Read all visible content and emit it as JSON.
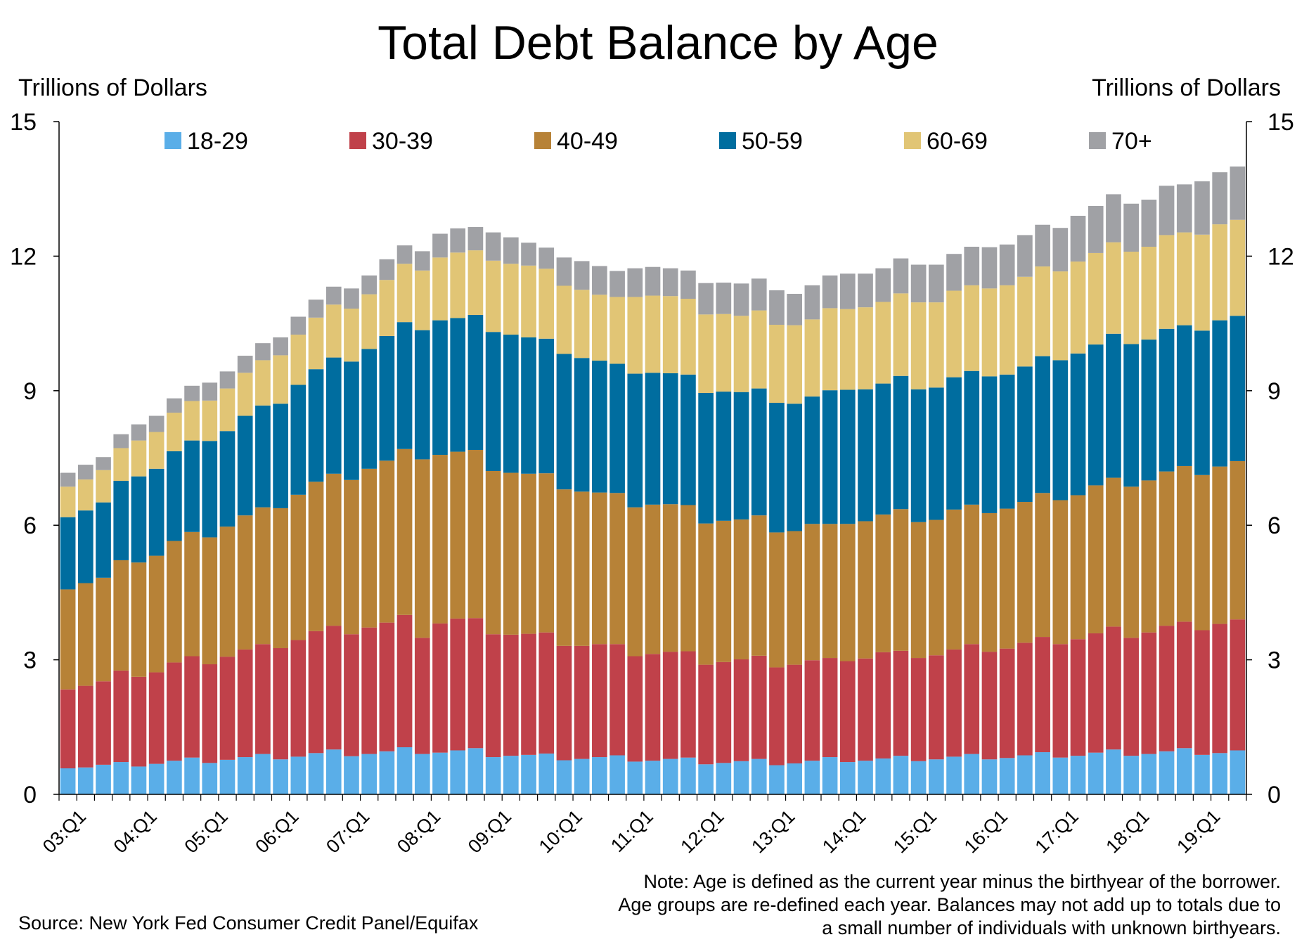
{
  "chart_data": {
    "type": "bar",
    "stacked": true,
    "title": "Total Debt Balance by Age",
    "ylabel_left": "Trillions of Dollars",
    "ylabel_right": "Trillions of Dollars",
    "ylim": [
      0,
      15
    ],
    "yticks": [
      0,
      3,
      6,
      9,
      12,
      15
    ],
    "grid": false,
    "legend_position": "top",
    "xtick_labels": [
      "03:Q1",
      "04:Q1",
      "05:Q1",
      "06:Q1",
      "07:Q1",
      "08:Q1",
      "09:Q1",
      "10:Q1",
      "11:Q1",
      "12:Q1",
      "13:Q1",
      "14:Q1",
      "15:Q1",
      "16:Q1",
      "17:Q1",
      "18:Q1",
      "19:Q1"
    ],
    "categories": [
      "03:Q1",
      "03:Q2",
      "03:Q3",
      "03:Q4",
      "04:Q1",
      "04:Q2",
      "04:Q3",
      "04:Q4",
      "05:Q1",
      "05:Q2",
      "05:Q3",
      "05:Q4",
      "06:Q1",
      "06:Q2",
      "06:Q3",
      "06:Q4",
      "07:Q1",
      "07:Q2",
      "07:Q3",
      "07:Q4",
      "08:Q1",
      "08:Q2",
      "08:Q3",
      "08:Q4",
      "09:Q1",
      "09:Q2",
      "09:Q3",
      "09:Q4",
      "10:Q1",
      "10:Q2",
      "10:Q3",
      "10:Q4",
      "11:Q1",
      "11:Q2",
      "11:Q3",
      "11:Q4",
      "12:Q1",
      "12:Q2",
      "12:Q3",
      "12:Q4",
      "13:Q1",
      "13:Q2",
      "13:Q3",
      "13:Q4",
      "14:Q1",
      "14:Q2",
      "14:Q3",
      "14:Q4",
      "15:Q1",
      "15:Q2",
      "15:Q3",
      "15:Q4",
      "16:Q1",
      "16:Q2",
      "16:Q3",
      "16:Q4",
      "17:Q1",
      "17:Q2",
      "17:Q3",
      "17:Q4",
      "18:Q1",
      "18:Q2",
      "18:Q3",
      "18:Q4",
      "19:Q1",
      "19:Q2",
      "19:Q3"
    ],
    "series": [
      {
        "name": "18-29",
        "color": "#5aaee8",
        "values": [
          0.58,
          0.6,
          0.66,
          0.72,
          0.62,
          0.68,
          0.75,
          0.82,
          0.7,
          0.77,
          0.83,
          0.9,
          0.78,
          0.84,
          0.92,
          1.0,
          0.85,
          0.9,
          0.96,
          1.05,
          0.9,
          0.93,
          0.98,
          1.03,
          0.83,
          0.86,
          0.88,
          0.91,
          0.76,
          0.79,
          0.83,
          0.87,
          0.73,
          0.75,
          0.79,
          0.82,
          0.67,
          0.7,
          0.74,
          0.79,
          0.65,
          0.69,
          0.75,
          0.83,
          0.72,
          0.75,
          0.8,
          0.86,
          0.74,
          0.78,
          0.84,
          0.9,
          0.78,
          0.81,
          0.87,
          0.94,
          0.82,
          0.86,
          0.93,
          1.0,
          0.86,
          0.9,
          0.96,
          1.03,
          0.88,
          0.92,
          0.98
        ]
      },
      {
        "name": "30-39",
        "color": "#c0414a",
        "values": [
          1.76,
          1.82,
          1.86,
          2.04,
          2.0,
          2.04,
          2.19,
          2.26,
          2.2,
          2.3,
          2.4,
          2.45,
          2.48,
          2.6,
          2.72,
          2.76,
          2.72,
          2.82,
          2.87,
          2.95,
          2.59,
          2.88,
          2.94,
          2.9,
          2.74,
          2.7,
          2.7,
          2.7,
          2.55,
          2.52,
          2.52,
          2.48,
          2.35,
          2.38,
          2.39,
          2.37,
          2.22,
          2.25,
          2.27,
          2.3,
          2.18,
          2.2,
          2.24,
          2.21,
          2.25,
          2.28,
          2.37,
          2.34,
          2.3,
          2.32,
          2.39,
          2.45,
          2.4,
          2.44,
          2.51,
          2.57,
          2.53,
          2.6,
          2.66,
          2.74,
          2.63,
          2.71,
          2.8,
          2.82,
          2.78,
          2.88,
          2.92
        ]
      },
      {
        "name": "40-49",
        "color": "#b78237",
        "values": [
          2.23,
          2.29,
          2.31,
          2.46,
          2.55,
          2.6,
          2.71,
          2.77,
          2.83,
          2.9,
          2.99,
          3.05,
          3.12,
          3.24,
          3.33,
          3.39,
          3.44,
          3.54,
          3.61,
          3.7,
          3.98,
          3.76,
          3.72,
          3.75,
          3.64,
          3.61,
          3.57,
          3.55,
          3.49,
          3.44,
          3.38,
          3.37,
          3.32,
          3.33,
          3.29,
          3.26,
          3.15,
          3.15,
          3.12,
          3.13,
          3.01,
          2.98,
          3.04,
          2.99,
          3.06,
          3.06,
          3.07,
          3.16,
          3.03,
          3.02,
          3.12,
          3.11,
          3.09,
          3.12,
          3.14,
          3.21,
          3.21,
          3.21,
          3.3,
          3.32,
          3.37,
          3.39,
          3.44,
          3.47,
          3.46,
          3.51,
          3.53
        ]
      },
      {
        "name": "50-59",
        "color": "#006d9f",
        "values": [
          1.61,
          1.62,
          1.68,
          1.77,
          1.92,
          1.94,
          2.0,
          2.04,
          2.15,
          2.13,
          2.22,
          2.27,
          2.33,
          2.45,
          2.51,
          2.59,
          2.64,
          2.67,
          2.78,
          2.83,
          2.88,
          3.0,
          2.98,
          3.01,
          3.1,
          3.08,
          3.04,
          3.0,
          3.02,
          2.98,
          2.94,
          2.88,
          2.98,
          2.94,
          2.92,
          2.91,
          2.91,
          2.88,
          2.84,
          2.83,
          2.89,
          2.84,
          2.84,
          2.98,
          2.99,
          2.94,
          2.92,
          2.97,
          2.96,
          2.95,
          2.95,
          2.98,
          3.05,
          2.99,
          3.02,
          3.05,
          3.12,
          3.16,
          3.14,
          3.21,
          3.18,
          3.14,
          3.18,
          3.14,
          3.22,
          3.26,
          3.24
        ]
      },
      {
        "name": "60-69",
        "color": "#e1c575",
        "values": [
          0.68,
          0.69,
          0.72,
          0.73,
          0.8,
          0.82,
          0.86,
          0.88,
          0.9,
          0.95,
          0.96,
          1.01,
          1.08,
          1.12,
          1.15,
          1.18,
          1.18,
          1.22,
          1.25,
          1.3,
          1.33,
          1.4,
          1.46,
          1.44,
          1.59,
          1.58,
          1.6,
          1.56,
          1.52,
          1.52,
          1.47,
          1.49,
          1.71,
          1.72,
          1.72,
          1.69,
          1.75,
          1.73,
          1.7,
          1.74,
          1.74,
          1.75,
          1.72,
          1.83,
          1.8,
          1.83,
          1.82,
          1.84,
          1.94,
          1.9,
          1.93,
          1.91,
          1.96,
          1.99,
          2.0,
          2.0,
          1.98,
          2.05,
          2.04,
          2.04,
          2.06,
          2.07,
          2.09,
          2.07,
          2.14,
          2.14,
          2.14
        ]
      },
      {
        "name": "70+",
        "color": "#a0a1a5",
        "values": [
          0.31,
          0.33,
          0.29,
          0.31,
          0.36,
          0.36,
          0.32,
          0.34,
          0.4,
          0.38,
          0.38,
          0.38,
          0.4,
          0.4,
          0.4,
          0.4,
          0.45,
          0.42,
          0.46,
          0.41,
          0.43,
          0.53,
          0.54,
          0.52,
          0.63,
          0.59,
          0.51,
          0.47,
          0.63,
          0.64,
          0.64,
          0.58,
          0.64,
          0.64,
          0.62,
          0.63,
          0.7,
          0.7,
          0.72,
          0.71,
          0.77,
          0.7,
          0.76,
          0.73,
          0.79,
          0.75,
          0.75,
          0.78,
          0.84,
          0.84,
          0.82,
          0.86,
          0.92,
          0.91,
          0.93,
          0.93,
          0.97,
          1.02,
          1.05,
          1.07,
          1.07,
          1.05,
          1.1,
          1.07,
          1.19,
          1.16,
          1.19
        ]
      }
    ]
  },
  "source": "Source: New York Fed Consumer Credit Panel/Equifax",
  "note": "Note: Age is defined as the current year minus the birthyear of the borrower. Age groups are re-defined each year. Balances may not add up to totals due to a small number of individuals with unknown birthyears."
}
